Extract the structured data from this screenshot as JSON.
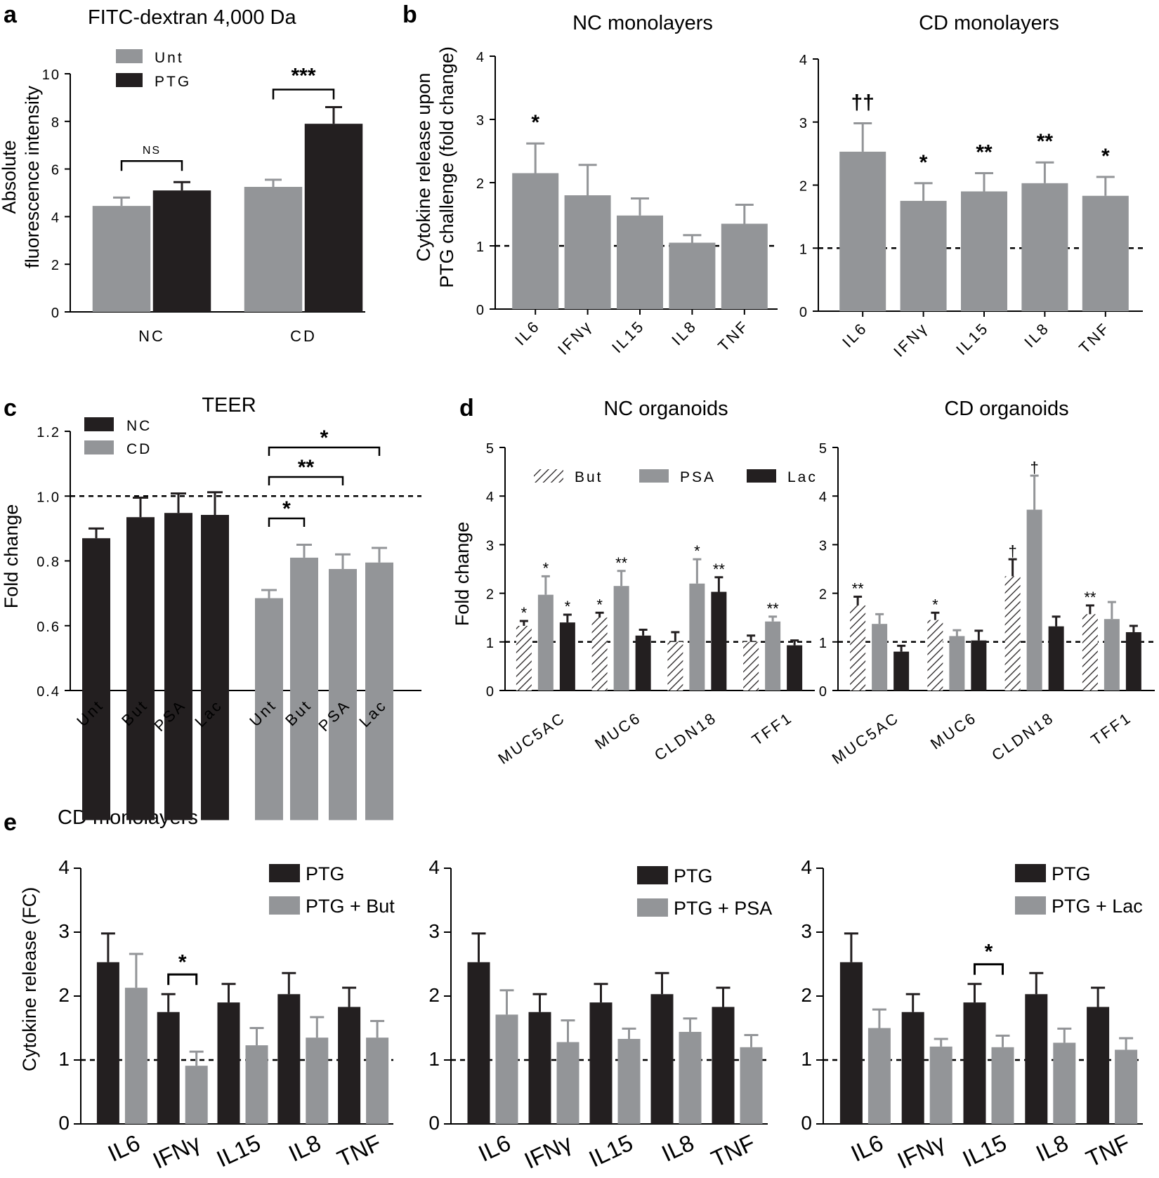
{
  "panel_labels": [
    "a",
    "b",
    "c",
    "d",
    "e"
  ],
  "colors": {
    "grey": "#939598",
    "black": "#231f20"
  },
  "chart_data": [
    {
      "id": "a",
      "type": "bar",
      "title": "FITC-dextran 4,000 Da",
      "ylabel": "Absolute fluorescence intensity",
      "ylabel_lines": [
        "Absolute",
        "fluorescence intensity"
      ],
      "ylim": [
        0,
        10
      ],
      "yticks": [
        "0",
        "2",
        "4",
        "6",
        "8",
        "10"
      ],
      "categories": [
        "NC",
        "CD"
      ],
      "series": [
        {
          "name": "Unt",
          "color": "grey",
          "values": [
            4.45,
            5.25
          ],
          "errors": [
            0.35,
            0.3
          ]
        },
        {
          "name": "PTG",
          "color": "black",
          "values": [
            5.1,
            7.9
          ],
          "errors": [
            0.35,
            0.7
          ]
        }
      ],
      "significance": [
        {
          "label": "NS",
          "group": 0
        },
        {
          "label": "***",
          "group": 1
        }
      ]
    },
    {
      "id": "b1",
      "type": "bar",
      "title": "NC monolayers",
      "ylabel": "Cytokine release upon PTG challenge (fold change)",
      "ylabel_lines": [
        "Cytokine release upon",
        "PTG challenge (fold change)"
      ],
      "ylim": [
        0,
        4
      ],
      "yticks": [
        "0",
        "1",
        "2",
        "3",
        "4"
      ],
      "reference_line": 1,
      "categories": [
        "IL6",
        "IFNγ",
        "IL15",
        "IL8",
        "TNF"
      ],
      "values": [
        2.15,
        1.8,
        1.48,
        1.05,
        1.35
      ],
      "errors": [
        0.47,
        0.48,
        0.27,
        0.12,
        0.3
      ],
      "annotations": [
        "*",
        "",
        "",
        "",
        ""
      ]
    },
    {
      "id": "b2",
      "type": "bar",
      "title": "CD monolayers",
      "ylim": [
        0,
        4
      ],
      "yticks": [
        "0",
        "1",
        "2",
        "3",
        "4"
      ],
      "reference_line": 1,
      "categories": [
        "IL6",
        "IFNγ",
        "IL15",
        "IL8",
        "TNF"
      ],
      "values": [
        2.53,
        1.75,
        1.9,
        2.03,
        1.83
      ],
      "errors": [
        0.45,
        0.28,
        0.29,
        0.33,
        0.3
      ],
      "annotations": [
        "††",
        "*",
        "**",
        "**",
        "*"
      ]
    },
    {
      "id": "c",
      "type": "bar",
      "title": "TEER",
      "ylabel": "Fold change",
      "ylim": [
        0.4,
        1.2
      ],
      "yticks": [
        "0.4",
        "0.6",
        "0.8",
        "1.0",
        "1.2"
      ],
      "reference_line": 1.0,
      "groups": [
        "NC",
        "CD"
      ],
      "categories": [
        "Unt",
        "But",
        "PSA",
        "Lac"
      ],
      "series": [
        {
          "name": "NC",
          "color": "black",
          "values": [
            0.87,
            0.935,
            0.948,
            0.942
          ],
          "errors": [
            0.03,
            0.06,
            0.06,
            0.07
          ]
        },
        {
          "name": "CD",
          "color": "grey",
          "values": [
            0.685,
            0.81,
            0.775,
            0.795
          ],
          "errors": [
            0.025,
            0.04,
            0.045,
            0.045
          ]
        }
      ],
      "significance": [
        {
          "label": "*",
          "from": "Unt",
          "to": "But"
        },
        {
          "label": "**",
          "from": "Unt",
          "to": "PSA"
        },
        {
          "label": "*",
          "from": "Unt",
          "to": "Lac"
        }
      ]
    },
    {
      "id": "d1",
      "type": "bar",
      "title": "NC organoids",
      "ylabel": "Fold change",
      "ylim": [
        0,
        5
      ],
      "yticks": [
        "0",
        "1",
        "2",
        "3",
        "4",
        "5"
      ],
      "reference_line": 1,
      "categories": [
        "MUC5AC",
        "MUC6",
        "CLDN18",
        "TFF1"
      ],
      "series": [
        {
          "name": "But",
          "pattern": "hatched",
          "values": [
            1.33,
            1.5,
            1.0,
            1.0
          ],
          "errors": [
            0.1,
            0.1,
            0.2,
            0.13
          ],
          "annotations": [
            "*",
            "*",
            "",
            ""
          ]
        },
        {
          "name": "PSA",
          "color": "grey",
          "values": [
            1.97,
            2.15,
            2.2,
            1.42
          ],
          "errors": [
            0.38,
            0.31,
            0.5,
            0.1
          ],
          "annotations": [
            "*",
            "**",
            "*",
            "**"
          ]
        },
        {
          "name": "Lac",
          "color": "black",
          "values": [
            1.4,
            1.13,
            2.03,
            0.93
          ],
          "errors": [
            0.16,
            0.12,
            0.3,
            0.1
          ],
          "annotations": [
            "*",
            "",
            "**",
            ""
          ]
        }
      ]
    },
    {
      "id": "d2",
      "type": "bar",
      "title": "CD organoids",
      "ylim": [
        0,
        5
      ],
      "yticks": [
        "0",
        "1",
        "2",
        "3",
        "4",
        "5"
      ],
      "reference_line": 1,
      "categories": [
        "MUC5AC",
        "MUC6",
        "CLDN18",
        "TFF1"
      ],
      "series": [
        {
          "name": "But",
          "pattern": "hatched",
          "values": [
            1.75,
            1.45,
            2.35,
            1.57
          ],
          "errors": [
            0.18,
            0.15,
            0.35,
            0.18
          ],
          "annotations": [
            "**",
            "*",
            "†",
            "**"
          ]
        },
        {
          "name": "PSA",
          "color": "grey",
          "values": [
            1.37,
            1.12,
            3.72,
            1.47
          ],
          "errors": [
            0.2,
            0.12,
            0.7,
            0.35
          ],
          "annotations": [
            "",
            "",
            "†",
            ""
          ]
        },
        {
          "name": "Lac",
          "color": "black",
          "values": [
            0.8,
            1.03,
            1.32,
            1.2
          ],
          "errors": [
            0.12,
            0.2,
            0.2,
            0.13
          ],
          "annotations": [
            "",
            "",
            "",
            ""
          ]
        }
      ]
    },
    {
      "id": "e1",
      "type": "bar",
      "title": "CD monolayers",
      "ylabel": "Cytokine release (FC)",
      "ylim": [
        0,
        4
      ],
      "yticks": [
        "0",
        "1",
        "2",
        "3",
        "4"
      ],
      "reference_line": 1,
      "categories": [
        "IL6",
        "IFNγ",
        "IL15",
        "IL8",
        "TNF"
      ],
      "series": [
        {
          "name": "PTG",
          "color": "black",
          "values": [
            2.53,
            1.75,
            1.9,
            2.03,
            1.83
          ],
          "errors": [
            0.45,
            0.28,
            0.29,
            0.33,
            0.3
          ]
        },
        {
          "name": "PTG + But",
          "color": "grey",
          "values": [
            2.13,
            0.91,
            1.23,
            1.35,
            1.35
          ],
          "errors": [
            0.53,
            0.22,
            0.27,
            0.32,
            0.26
          ]
        }
      ],
      "significance": [
        {
          "label": "*",
          "category": "IFNγ"
        }
      ]
    },
    {
      "id": "e2",
      "type": "bar",
      "ylim": [
        0,
        4
      ],
      "yticks": [
        "0",
        "1",
        "2",
        "3",
        "4"
      ],
      "reference_line": 1,
      "categories": [
        "IL6",
        "IFNγ",
        "IL15",
        "IL8",
        "TNF"
      ],
      "series": [
        {
          "name": "PTG",
          "color": "black",
          "values": [
            2.53,
            1.75,
            1.9,
            2.03,
            1.83
          ],
          "errors": [
            0.45,
            0.28,
            0.29,
            0.33,
            0.3
          ]
        },
        {
          "name": "PTG + PSA",
          "color": "grey",
          "values": [
            1.71,
            1.28,
            1.33,
            1.44,
            1.2
          ],
          "errors": [
            0.38,
            0.34,
            0.16,
            0.21,
            0.19
          ]
        }
      ],
      "significance": []
    },
    {
      "id": "e3",
      "type": "bar",
      "ylim": [
        0,
        4
      ],
      "yticks": [
        "0",
        "1",
        "2",
        "3",
        "4"
      ],
      "reference_line": 1,
      "categories": [
        "IL6",
        "IFNγ",
        "IL15",
        "IL8",
        "TNF"
      ],
      "series": [
        {
          "name": "PTG",
          "color": "black",
          "values": [
            2.53,
            1.75,
            1.9,
            2.03,
            1.83
          ],
          "errors": [
            0.45,
            0.28,
            0.29,
            0.33,
            0.3
          ]
        },
        {
          "name": "PTG + Lac",
          "color": "grey",
          "values": [
            1.5,
            1.21,
            1.2,
            1.27,
            1.16
          ],
          "errors": [
            0.29,
            0.12,
            0.18,
            0.22,
            0.18
          ]
        }
      ],
      "significance": [
        {
          "label": "*",
          "category": "IL15"
        }
      ]
    }
  ]
}
